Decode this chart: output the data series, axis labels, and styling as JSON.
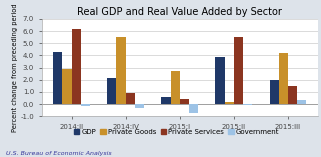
{
  "title": "Real GDP and Real Value Added by Sector",
  "ylabel": "Percent change from preceding period",
  "source": "U.S. Bureau of Economic Analysis",
  "categories": [
    "2014:II",
    "2014:IV",
    "2015:I",
    "2015:II",
    "2015:III"
  ],
  "series": {
    "GDP": [
      4.3,
      2.1,
      0.6,
      3.9,
      2.0
    ],
    "Private Goods": [
      2.9,
      5.5,
      2.7,
      0.2,
      4.2
    ],
    "Private Services": [
      6.2,
      0.9,
      0.4,
      5.5,
      1.5
    ],
    "Government": [
      -0.2,
      -0.3,
      -0.7,
      -0.1,
      0.35
    ]
  },
  "colors": {
    "GDP": "#1f3868",
    "Private Goods": "#c8902a",
    "Private Services": "#8b3520",
    "Government": "#9dc3e6"
  },
  "ylim": [
    -1.0,
    7.0
  ],
  "yticks": [
    -1.0,
    0.0,
    1.0,
    2.0,
    3.0,
    4.0,
    5.0,
    6.0,
    7.0
  ],
  "bar_width": 0.17,
  "plot_bg_color": "#ffffff",
  "fig_bg_color": "#dde3ea",
  "grid_color": "#cccccc",
  "title_fontsize": 7.0,
  "label_fontsize": 4.8,
  "tick_fontsize": 5.0,
  "legend_fontsize": 5.0,
  "source_fontsize": 4.5
}
